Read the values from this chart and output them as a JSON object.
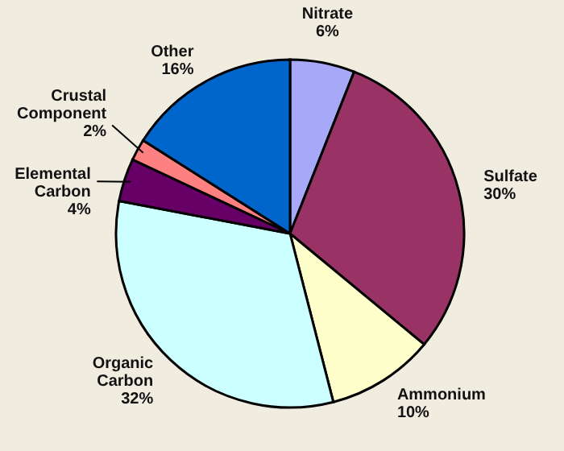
{
  "chart_data": {
    "type": "pie",
    "categories": [
      "Nitrate",
      "Sulfate",
      "Ammonium",
      "Organic Carbon",
      "Elemental Carbon",
      "Crustal Component",
      "Other"
    ],
    "values": [
      6,
      30,
      10,
      32,
      4,
      2,
      16
    ],
    "value_labels": [
      "6%",
      "30%",
      "10%",
      "32%",
      "4%",
      "2%",
      "16%"
    ],
    "colors": [
      "#a8a8f8",
      "#993366",
      "#ffffcc",
      "#ccffff",
      "#660066",
      "#ff8080",
      "#0066cc"
    ],
    "legend": false
  }
}
